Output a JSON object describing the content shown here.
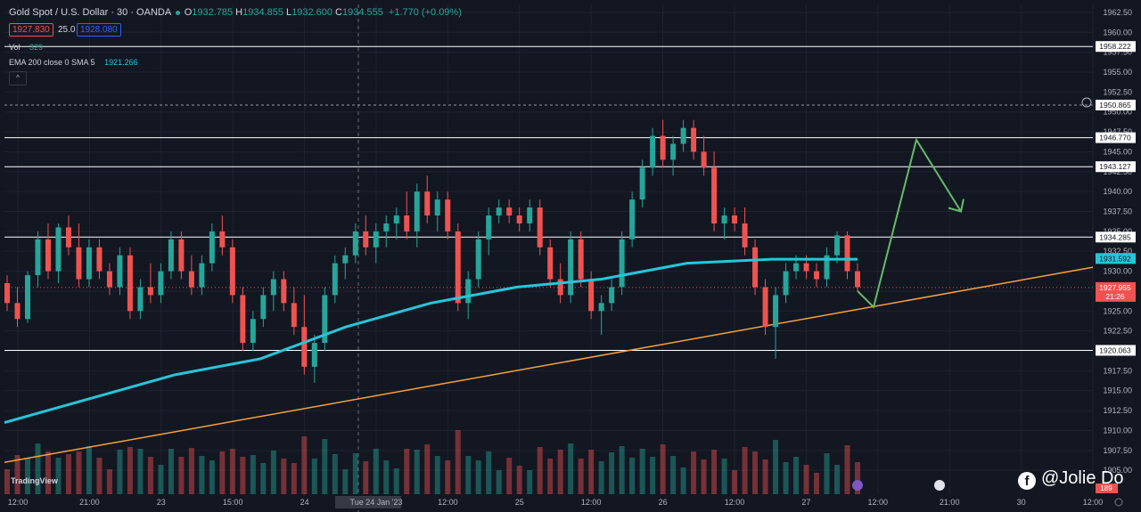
{
  "header": {
    "title": "Gold Spot / U.S. Dollar · 30 · OANDA",
    "ohlc": [
      {
        "k": "O",
        "v": "1932.785"
      },
      {
        "k": "H",
        "v": "1934.855"
      },
      {
        "k": "L",
        "v": "1932.600"
      },
      {
        "k": "C",
        "v": "1934.555"
      }
    ],
    "change": "+1.770 (+0.09%)",
    "sell": "1927.830",
    "spread": "25.0",
    "buy": "1928.080"
  },
  "indicators": {
    "vol_label": "Vol",
    "vol_value": "329",
    "ema_label": "EMA 200 close 0 SMA 5",
    "ema_value": "1921.266"
  },
  "watermark": "TradingView",
  "brand": "@Jolie Do",
  "colors": {
    "bg": "#131722",
    "up": "#26a69a",
    "down": "#ef5350",
    "ema": "#26c6da",
    "trendline": "#f7a23b",
    "projection": "#66bb6a",
    "level": "#ffffff"
  },
  "chart_data": {
    "type": "candlestick",
    "yticks": [
      1905,
      1907.5,
      1910,
      1912.5,
      1915,
      1917.5,
      1920,
      1922.5,
      1925,
      1927.5,
      1930,
      1932.5,
      1935,
      1937.5,
      1940,
      1942.5,
      1945,
      1947.5,
      1950,
      1952.5,
      1955,
      1957.5,
      1960,
      1962.5
    ],
    "ylim": [
      1902,
      1963.5
    ],
    "xticks": [
      "12:00",
      "21:00",
      "23",
      "15:00",
      "24",
      "Tue 24 Jan '23",
      "12:00",
      "25",
      "12:00",
      "26",
      "12:00",
      "27",
      "12:00",
      "21:00",
      "30",
      "12:00"
    ],
    "horizontal_levels": [
      "1958.222",
      "1946.770",
      "1943.127",
      "1934.285",
      "1920.063"
    ],
    "dashed_level": "1950.865",
    "ema_label_value": "1931.592",
    "last_price": "1927.955",
    "countdown": "21:26",
    "volume_last": "189",
    "candles": [
      [
        1928.5,
        1929.5,
        1925,
        1926
      ],
      [
        1926,
        1928,
        1923,
        1924
      ],
      [
        1924,
        1930,
        1923.5,
        1929.5
      ],
      [
        1929.5,
        1935,
        1928,
        1934
      ],
      [
        1934,
        1936,
        1929,
        1930
      ],
      [
        1930,
        1936,
        1928.5,
        1935.5
      ],
      [
        1935.5,
        1937,
        1932,
        1933
      ],
      [
        1933,
        1936,
        1928,
        1929
      ],
      [
        1929,
        1934,
        1928,
        1933
      ],
      [
        1933,
        1934,
        1929,
        1930
      ],
      [
        1930,
        1931,
        1927,
        1928
      ],
      [
        1928,
        1933,
        1927,
        1932
      ],
      [
        1932,
        1933,
        1924,
        1925
      ],
      [
        1925,
        1929,
        1924,
        1928
      ],
      [
        1928,
        1931,
        1926,
        1927
      ],
      [
        1927,
        1931,
        1926,
        1930
      ],
      [
        1930,
        1935,
        1929,
        1934
      ],
      [
        1934,
        1935,
        1929,
        1930
      ],
      [
        1930,
        1932,
        1927,
        1928
      ],
      [
        1928,
        1932,
        1927,
        1931
      ],
      [
        1931,
        1936,
        1930,
        1935
      ],
      [
        1935,
        1937,
        1932,
        1933
      ],
      [
        1933,
        1934,
        1926,
        1927
      ],
      [
        1927,
        1928,
        1920,
        1921
      ],
      [
        1921,
        1925,
        1920,
        1924
      ],
      [
        1924,
        1928,
        1923,
        1927
      ],
      [
        1927,
        1930,
        1925,
        1929
      ],
      [
        1929,
        1930,
        1925,
        1926
      ],
      [
        1926,
        1928,
        1922,
        1923
      ],
      [
        1923,
        1927,
        1917,
        1918
      ],
      [
        1918,
        1922,
        1916,
        1921
      ],
      [
        1921,
        1928,
        1920,
        1927
      ],
      [
        1927,
        1932,
        1926,
        1931
      ],
      [
        1931,
        1933,
        1929,
        1932
      ],
      [
        1932,
        1936,
        1931,
        1935
      ],
      [
        1935,
        1937,
        1932,
        1933
      ],
      [
        1933,
        1936,
        1931,
        1935
      ],
      [
        1935,
        1937,
        1933,
        1936
      ],
      [
        1936,
        1938,
        1934,
        1937
      ],
      [
        1937,
        1940,
        1934,
        1935
      ],
      [
        1935,
        1941,
        1933,
        1940
      ],
      [
        1940,
        1942,
        1936,
        1937
      ],
      [
        1937,
        1940,
        1935,
        1939
      ],
      [
        1939,
        1940,
        1934,
        1935
      ],
      [
        1935,
        1936,
        1925,
        1926
      ],
      [
        1926,
        1930,
        1924,
        1929
      ],
      [
        1929,
        1935,
        1928,
        1934
      ],
      [
        1934,
        1938,
        1932,
        1937
      ],
      [
        1937,
        1939,
        1936,
        1938
      ],
      [
        1938,
        1939,
        1936,
        1937
      ],
      [
        1937,
        1938,
        1935,
        1936
      ],
      [
        1936,
        1939,
        1935,
        1938
      ],
      [
        1938,
        1939,
        1932,
        1933
      ],
      [
        1933,
        1934,
        1928,
        1929
      ],
      [
        1929,
        1931,
        1926,
        1927
      ],
      [
        1927,
        1935,
        1926,
        1934
      ],
      [
        1934,
        1935,
        1928,
        1929
      ],
      [
        1929,
        1930,
        1924,
        1925
      ],
      [
        1925,
        1927,
        1922,
        1926
      ],
      [
        1926,
        1929,
        1925,
        1928
      ],
      [
        1928,
        1935,
        1927,
        1934
      ],
      [
        1934,
        1940,
        1933,
        1939
      ],
      [
        1939,
        1944,
        1938,
        1943
      ],
      [
        1943,
        1948,
        1942,
        1947
      ],
      [
        1947,
        1949,
        1943,
        1944
      ],
      [
        1944,
        1947,
        1942,
        1946
      ],
      [
        1946,
        1949,
        1945,
        1948
      ],
      [
        1948,
        1949,
        1944,
        1945
      ],
      [
        1945,
        1947,
        1942,
        1943
      ],
      [
        1943,
        1945,
        1935,
        1936
      ],
      [
        1936,
        1938,
        1934,
        1937
      ],
      [
        1937,
        1938,
        1935,
        1936
      ],
      [
        1936,
        1938,
        1932,
        1933
      ],
      [
        1933,
        1934,
        1927,
        1928
      ],
      [
        1928,
        1929,
        1922,
        1923
      ],
      [
        1923,
        1928,
        1919,
        1927
      ],
      [
        1927,
        1931,
        1926,
        1930
      ],
      [
        1930,
        1932,
        1929,
        1931
      ],
      [
        1931,
        1932,
        1929,
        1930
      ],
      [
        1930,
        1931,
        1928,
        1929
      ],
      [
        1929,
        1933,
        1928,
        1932
      ],
      [
        1932,
        1935,
        1931,
        1934.5
      ],
      [
        1934.5,
        1935,
        1929,
        1930
      ],
      [
        1930,
        1931,
        1927.5,
        1928
      ]
    ],
    "ema_points": [
      [
        0,
        1911
      ],
      [
        0.1,
        1914
      ],
      [
        0.2,
        1917
      ],
      [
        0.3,
        1919
      ],
      [
        0.4,
        1923
      ],
      [
        0.5,
        1926
      ],
      [
        0.6,
        1928
      ],
      [
        0.7,
        1929
      ],
      [
        0.8,
        1931
      ],
      [
        0.9,
        1931.5
      ],
      [
        1,
        1931.5
      ]
    ],
    "trendline": {
      "from": [
        0,
        1906
      ],
      "to": [
        1,
        1930.5
      ]
    },
    "projection": [
      [
        1927.5,
        1925.5
      ],
      [
        1946.7,
        1946.5
      ],
      [
        1937,
        1937.5
      ]
    ]
  }
}
